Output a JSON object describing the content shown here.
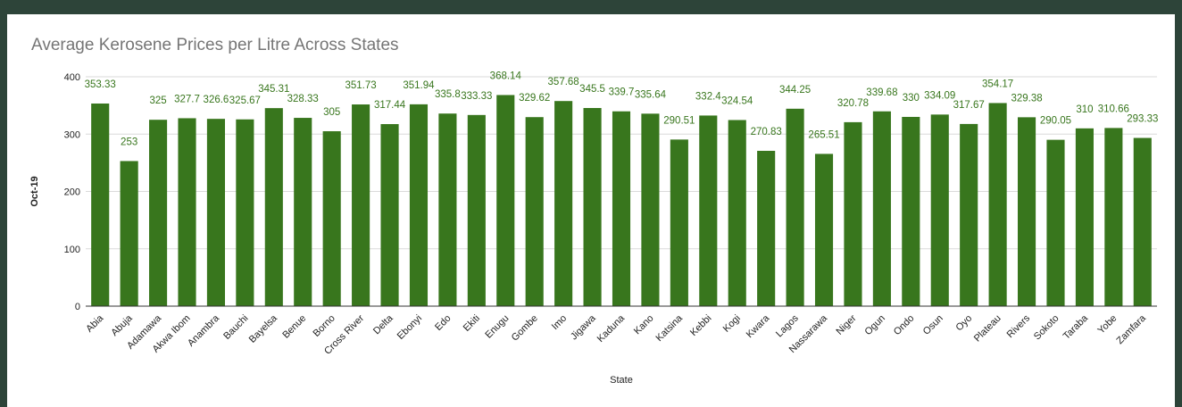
{
  "chart_data": {
    "type": "bar",
    "title": "Average Kerosene Prices per Litre Across States",
    "xlabel": "State",
    "ylabel": "Oct-19",
    "ylim": [
      0,
      400
    ],
    "yticks": [
      0,
      100,
      200,
      300,
      400
    ],
    "grid": true,
    "bar_color": "#38761d",
    "categories": [
      "Abia",
      "Abuja",
      "Adamawa",
      "Akwa Ibom",
      "Anambra",
      "Bauchi",
      "Bayelsa",
      "Benue",
      "Borno",
      "Cross River",
      "Delta",
      "Ebonyi",
      "Edo",
      "Ekiti",
      "Enugu",
      "Gombe",
      "Imo",
      "Jigawa",
      "Kaduna",
      "Kano",
      "Katsina",
      "Kebbi",
      "Kogi",
      "Kwara",
      "Lagos",
      "Nassarawa",
      "Niger",
      "Ogun",
      "Ondo",
      "Osun",
      "Oyo",
      "Plateau",
      "Rivers",
      "Sokoto",
      "Taraba",
      "Yobe",
      "Zamfara"
    ],
    "values": [
      353.33,
      253,
      325,
      327.7,
      326.6,
      325.67,
      345.31,
      328.33,
      305,
      351.73,
      317.44,
      351.94,
      335.83,
      333.33,
      368.14,
      329.62,
      357.68,
      345.5,
      339.7,
      335.64,
      290.51,
      332.4,
      324.54,
      270.83,
      344.25,
      265.51,
      320.78,
      339.68,
      330,
      334.09,
      317.67,
      354.17,
      329.38,
      290.05,
      310,
      310.66,
      293.33
    ],
    "value_labels": [
      "353.33",
      "253",
      "325",
      "327.7",
      "326.6",
      "325.67",
      "345.31",
      "328.33",
      "305",
      "351.73",
      "317.44",
      "351.94",
      "335.8",
      "333.33",
      "368.14",
      "329.62",
      "357.68",
      "345.5",
      "339.7",
      "335.64",
      "290.51",
      "332.4",
      "324.54",
      "270.83",
      "344.25",
      "265.51",
      "320.78",
      "339.68",
      "330",
      "334.09",
      "317.67",
      "354.17",
      "329.38",
      "290.05",
      "310",
      "310.66",
      "293.33"
    ]
  }
}
